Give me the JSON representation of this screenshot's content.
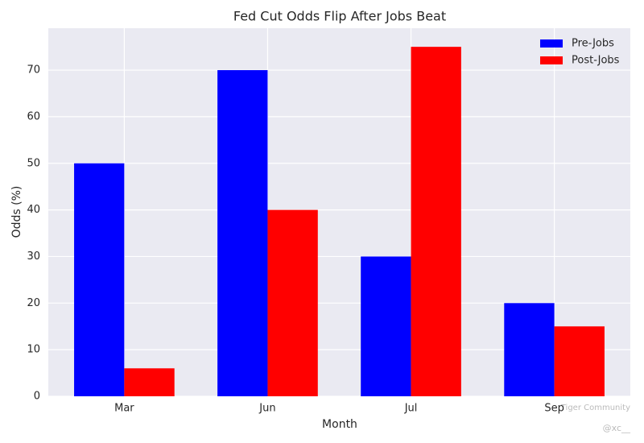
{
  "chart_data": {
    "type": "bar",
    "title": "Fed Cut Odds Flip After Jobs Beat",
    "x_label": "Month",
    "y_label": "Odds (%)",
    "categories": [
      "Mar",
      "Jun",
      "Jul",
      "Sep"
    ],
    "series": [
      {
        "name": "Pre-Jobs",
        "color": "#0000ff",
        "values": [
          50,
          70,
          30,
          20
        ]
      },
      {
        "name": "Post-Jobs",
        "color": "#ff0000",
        "values": [
          6,
          40,
          75,
          15
        ]
      }
    ],
    "ylim": [
      0,
      79
    ],
    "yticks": [
      0,
      10,
      20,
      30,
      40,
      50,
      60,
      70
    ],
    "grid": true,
    "legend": "upper-right",
    "watermark": [
      "Tiger Community",
      "@xc__"
    ]
  }
}
